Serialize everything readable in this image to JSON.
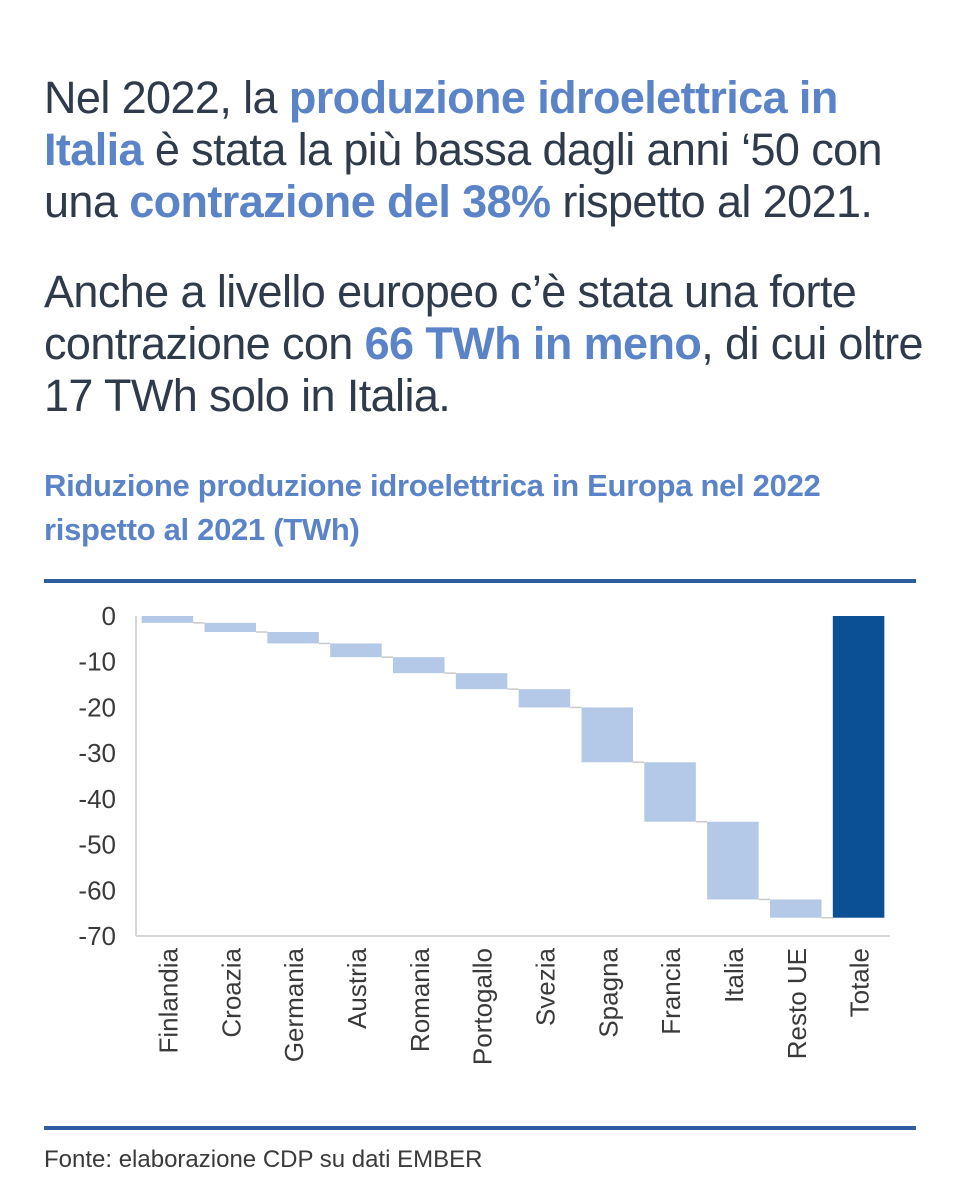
{
  "intro": {
    "p1": [
      {
        "text": "Nel 2022, la ",
        "hl": false
      },
      {
        "text": "produzione idroelettrica in Italia",
        "hl": true
      },
      {
        "text": " è stata la più bassa dagli anni ‘50 con una ",
        "hl": false
      },
      {
        "text": "contrazione del 38%",
        "hl": true
      },
      {
        "text": " rispetto al 2021.",
        "hl": false
      }
    ],
    "p2": [
      {
        "text": "Anche a livello europeo c’è stata una forte contrazione con ",
        "hl": false
      },
      {
        "text": "66 TWh in meno",
        "hl": true
      },
      {
        "text": ", di cui oltre 17 TWh solo in Italia.",
        "hl": false
      }
    ]
  },
  "source": "Fonte: elaborazione CDP su dati EMBER",
  "colors": {
    "text": "#2f3a4a",
    "highlight": "#5b84c8",
    "rule": "#2e5ea0",
    "bar_light": "#b4c9e8",
    "bar_total": "#0b4f94"
  },
  "chart_data": {
    "type": "bar",
    "subtype": "waterfall",
    "title": "Riduzione produzione idroelettrica in Europa nel 2022 rispetto al 2021 (TWh)",
    "xlabel": "",
    "ylabel": "",
    "ylim": [
      -70,
      0
    ],
    "yticks": [
      0,
      -10,
      -20,
      -30,
      -40,
      -50,
      -60,
      -70
    ],
    "grid": false,
    "categories": [
      "Finlandia",
      "Croazia",
      "Germania",
      "Austria",
      "Romania",
      "Portogallo",
      "Svezia",
      "Spagna",
      "Francia",
      "Italia",
      "Resto UE",
      "Totale"
    ],
    "values": [
      -1.5,
      -2,
      -2.5,
      -3,
      -3.5,
      -3.5,
      -4,
      -12,
      -13,
      -17,
      -4,
      -66
    ],
    "cumulative_end": [
      -1.5,
      -3.5,
      -6,
      -9,
      -12.5,
      -16,
      -20,
      -32,
      -45,
      -62,
      -66,
      -66
    ],
    "total_category": "Totale"
  }
}
